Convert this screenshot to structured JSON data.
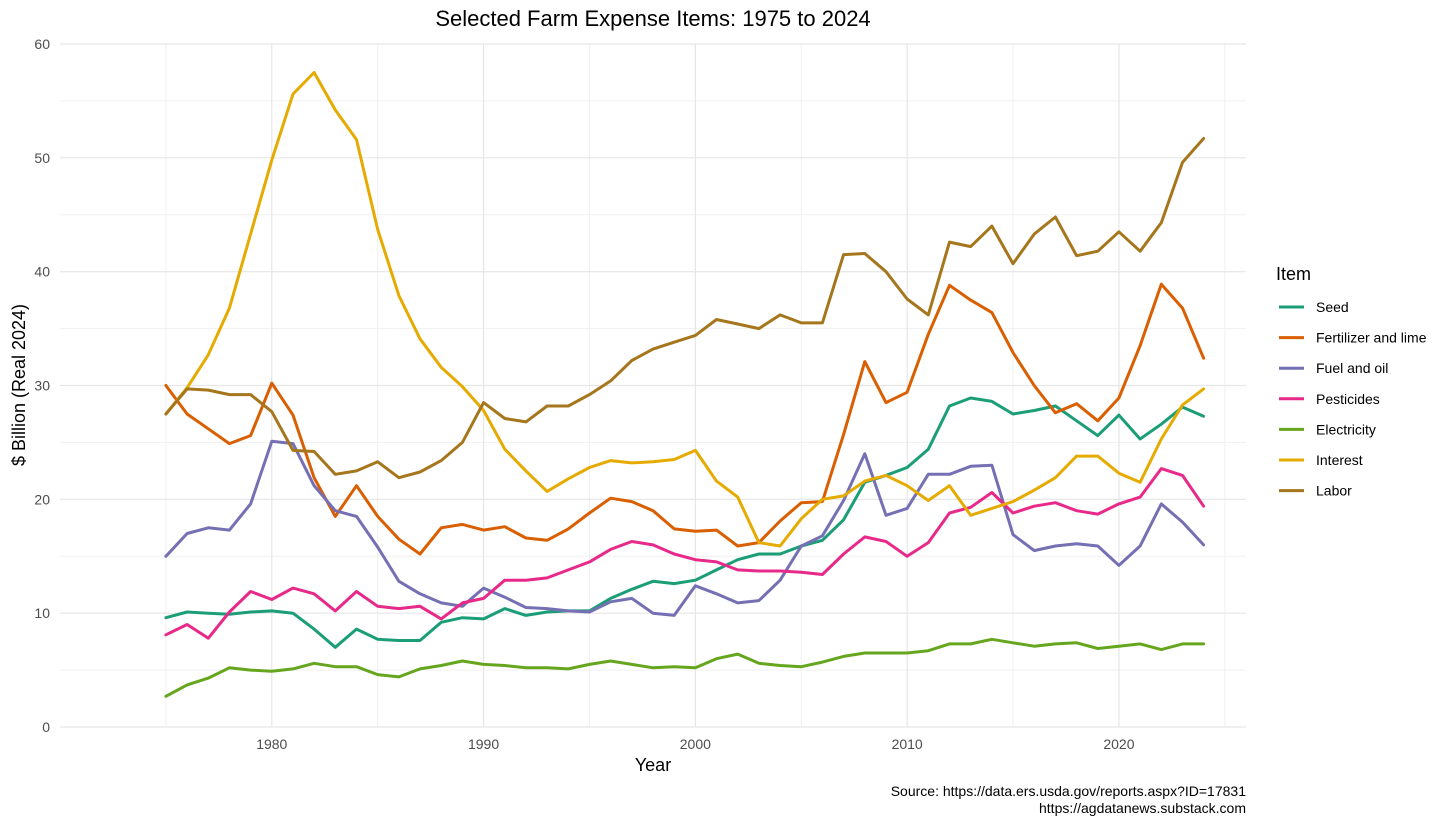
{
  "chart_data": {
    "type": "line",
    "title": "Selected Farm Expense Items: 1975 to 2024",
    "xlabel": "Year",
    "ylabel": "$ Billion (Real 2024)",
    "xlim": [
      1970,
      2026
    ],
    "ylim": [
      0,
      60
    ],
    "x_ticks": [
      1980,
      1990,
      2000,
      2010,
      2020
    ],
    "y_ticks": [
      0,
      10,
      20,
      30,
      40,
      50,
      60
    ],
    "grid": true,
    "legend_title": "Item",
    "legend_position": "right",
    "x": [
      1975,
      1976,
      1977,
      1978,
      1979,
      1980,
      1981,
      1982,
      1983,
      1984,
      1985,
      1986,
      1987,
      1988,
      1989,
      1990,
      1991,
      1992,
      1993,
      1994,
      1995,
      1996,
      1997,
      1998,
      1999,
      2000,
      2001,
      2002,
      2003,
      2004,
      2005,
      2006,
      2007,
      2008,
      2009,
      2010,
      2011,
      2012,
      2013,
      2014,
      2015,
      2016,
      2017,
      2018,
      2019,
      2020,
      2021,
      2022,
      2023,
      2024
    ],
    "series": [
      {
        "name": "Seed",
        "color": "#1b9e77",
        "values": [
          9.6,
          10.1,
          10.0,
          9.9,
          10.1,
          10.2,
          10.0,
          8.6,
          7.0,
          8.6,
          7.7,
          7.6,
          7.6,
          9.2,
          9.6,
          9.5,
          10.4,
          9.8,
          10.1,
          10.2,
          10.2,
          11.3,
          12.1,
          12.8,
          12.6,
          12.9,
          13.8,
          14.7,
          15.2,
          15.2,
          15.9,
          16.4,
          18.2,
          21.5,
          22.1,
          22.8,
          24.4,
          28.2,
          28.9,
          28.6,
          27.5,
          27.8,
          28.2,
          26.9,
          25.6,
          27.4,
          25.3,
          26.6,
          28.1,
          27.3
        ]
      },
      {
        "name": "Fertilizer and lime",
        "color": "#d95f02",
        "values": [
          30.0,
          27.5,
          26.2,
          24.9,
          25.6,
          30.2,
          27.4,
          21.9,
          18.5,
          21.2,
          18.5,
          16.5,
          15.2,
          17.5,
          17.8,
          17.3,
          17.6,
          16.6,
          16.4,
          17.4,
          18.8,
          20.1,
          19.8,
          19.0,
          17.4,
          17.2,
          17.3,
          15.9,
          16.2,
          18.1,
          19.7,
          19.8,
          25.7,
          32.1,
          28.5,
          29.4,
          34.5,
          38.8,
          37.5,
          36.4,
          32.9,
          30.0,
          27.6,
          28.4,
          26.9,
          28.9,
          33.5,
          38.9,
          36.8,
          32.4
        ]
      },
      {
        "name": "Fuel and oil",
        "color": "#7570b3",
        "values": [
          15.0,
          17.0,
          17.5,
          17.3,
          19.6,
          25.1,
          24.9,
          21.2,
          19.0,
          18.5,
          15.8,
          12.8,
          11.7,
          10.9,
          10.6,
          12.2,
          11.4,
          10.5,
          10.4,
          10.2,
          10.1,
          11.0,
          11.3,
          10.0,
          9.8,
          12.4,
          11.7,
          10.9,
          11.1,
          12.9,
          15.9,
          16.8,
          19.9,
          24.0,
          18.6,
          19.2,
          22.2,
          22.2,
          22.9,
          23.0,
          16.9,
          15.5,
          15.9,
          16.1,
          15.9,
          14.2,
          15.9,
          19.6,
          18.0,
          16.0
        ]
      },
      {
        "name": "Pesticides",
        "color": "#e7298a",
        "values": [
          8.1,
          9.0,
          7.8,
          10.1,
          11.9,
          11.2,
          12.2,
          11.7,
          10.2,
          11.9,
          10.6,
          10.4,
          10.6,
          9.5,
          10.9,
          11.3,
          12.9,
          12.9,
          13.1,
          13.8,
          14.5,
          15.6,
          16.3,
          16.0,
          15.2,
          14.7,
          14.5,
          13.8,
          13.7,
          13.7,
          13.6,
          13.4,
          15.2,
          16.7,
          16.3,
          15.0,
          16.2,
          18.8,
          19.3,
          20.6,
          18.8,
          19.4,
          19.7,
          19.0,
          18.7,
          19.6,
          20.2,
          22.7,
          22.1,
          19.4
        ]
      },
      {
        "name": "Electricity",
        "color": "#66a61e",
        "values": [
          2.7,
          3.7,
          4.3,
          5.2,
          5.0,
          4.9,
          5.1,
          5.6,
          5.3,
          5.3,
          4.6,
          4.4,
          5.1,
          5.4,
          5.8,
          5.5,
          5.4,
          5.2,
          5.2,
          5.1,
          5.5,
          5.8,
          5.5,
          5.2,
          5.3,
          5.2,
          6.0,
          6.4,
          5.6,
          5.4,
          5.3,
          5.7,
          6.2,
          6.5,
          6.5,
          6.5,
          6.7,
          7.3,
          7.3,
          7.7,
          7.4,
          7.1,
          7.3,
          7.4,
          6.9,
          7.1,
          7.3,
          6.8,
          7.3,
          7.3
        ]
      },
      {
        "name": "Interest",
        "color": "#e6ab02",
        "values": [
          27.5,
          29.8,
          32.7,
          36.8,
          43.3,
          49.8,
          55.6,
          57.5,
          54.2,
          51.6,
          43.7,
          37.9,
          34.1,
          31.6,
          29.9,
          27.8,
          24.4,
          22.5,
          20.7,
          21.8,
          22.8,
          23.4,
          23.2,
          23.3,
          23.5,
          24.3,
          21.6,
          20.2,
          16.2,
          15.9,
          18.3,
          20.0,
          20.3,
          21.6,
          22.1,
          21.2,
          19.9,
          21.2,
          18.6,
          19.2,
          19.8,
          20.8,
          21.9,
          23.8,
          23.8,
          22.3,
          21.5,
          25.3,
          28.3,
          29.7
        ]
      },
      {
        "name": "Labor",
        "color": "#a6761d",
        "values": [
          27.5,
          29.7,
          29.6,
          29.2,
          29.2,
          27.7,
          24.3,
          24.2,
          22.2,
          22.5,
          23.3,
          21.9,
          22.4,
          23.4,
          25.0,
          28.5,
          27.1,
          26.8,
          28.2,
          28.2,
          29.2,
          30.4,
          32.2,
          33.2,
          33.8,
          34.4,
          35.8,
          35.4,
          35.0,
          36.2,
          35.5,
          35.5,
          41.5,
          41.6,
          40.0,
          37.6,
          36.2,
          42.6,
          42.2,
          44.0,
          40.7,
          43.3,
          44.8,
          41.4,
          41.8,
          43.5,
          41.8,
          44.3,
          49.6,
          51.7
        ]
      }
    ],
    "caption": [
      "Source: https://data.ers.usda.gov/reports.aspx?ID=17831",
      "https://agdatanews.substack.com"
    ]
  }
}
